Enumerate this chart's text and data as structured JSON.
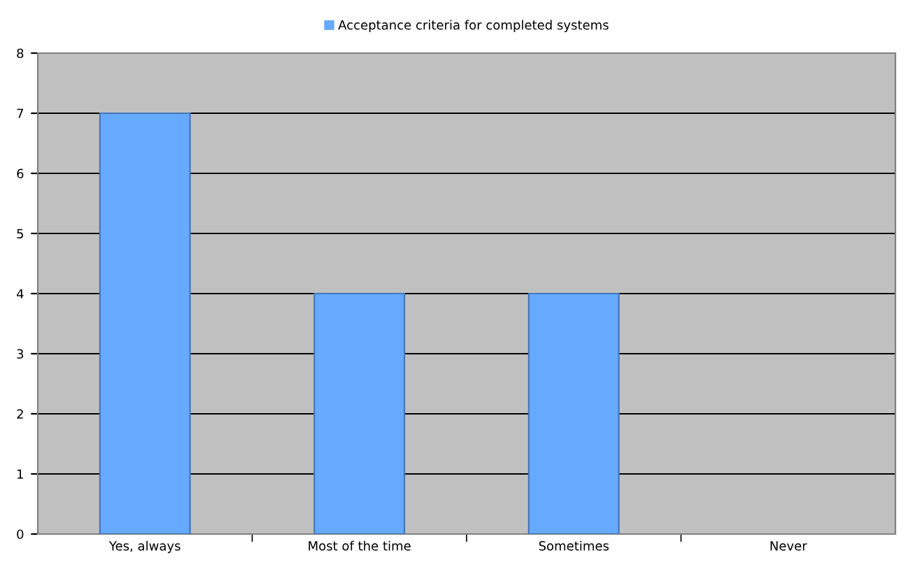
{
  "chart_data": {
    "type": "bar",
    "categories": [
      "Yes, always",
      "Most of the time",
      "Sometimes",
      "Never"
    ],
    "series": [
      {
        "name": "Acceptance criteria for completed systems",
        "color": "#66aaff",
        "values": [
          7,
          4,
          4,
          0
        ]
      }
    ],
    "ylim": [
      0,
      8
    ],
    "yticks": [
      0,
      1,
      2,
      3,
      4,
      5,
      6,
      7,
      8
    ],
    "grid": "y",
    "legend": "top"
  }
}
